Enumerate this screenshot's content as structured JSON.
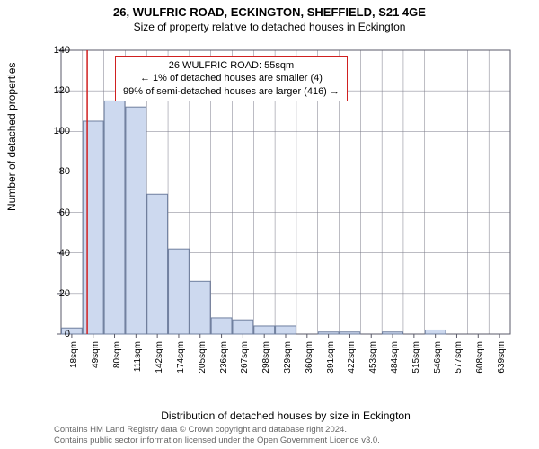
{
  "title": {
    "line1": "26, WULFRIC ROAD, ECKINGTON, SHEFFIELD, S21 4GE",
    "line2": "Size of property relative to detached houses in Eckington"
  },
  "axes": {
    "ylabel": "Number of detached properties",
    "xlabel": "Distribution of detached houses by size in Eckington",
    "ylim": [
      0,
      140
    ],
    "yticks": [
      0,
      20,
      40,
      60,
      80,
      100,
      120,
      140
    ],
    "xtick_labels": [
      "18sqm",
      "49sqm",
      "80sqm",
      "111sqm",
      "142sqm",
      "174sqm",
      "205sqm",
      "236sqm",
      "267sqm",
      "298sqm",
      "329sqm",
      "360sqm",
      "391sqm",
      "422sqm",
      "453sqm",
      "484sqm",
      "515sqm",
      "546sqm",
      "577sqm",
      "608sqm",
      "639sqm"
    ]
  },
  "chart": {
    "type": "bar-histogram",
    "values": [
      3,
      105,
      115,
      112,
      69,
      42,
      26,
      8,
      7,
      4,
      4,
      0,
      1,
      1,
      0,
      1,
      0,
      2,
      0,
      0,
      0
    ],
    "bar_fill": "#cdd9ef",
    "bar_stroke": "#6f7f9f",
    "bar_stroke_width": 1,
    "background": "#ffffff",
    "grid_color": "#7a7a88",
    "grid_stroke_width": 0.5,
    "axis_stroke": "#5a5a68",
    "marker_line": {
      "value": 55,
      "domain_min": 18,
      "domain_max": 654,
      "color": "#d02020",
      "width": 1.5
    }
  },
  "annotation": {
    "line1": "26 WULFRIC ROAD: 55sqm",
    "line2": "← 1% of detached houses are smaller (4)",
    "line3": "99% of semi-detached houses are larger (416) →",
    "border_color": "#d02020"
  },
  "credits": {
    "line1": "Contains HM Land Registry data © Crown copyright and database right 2024.",
    "line2": "Contains public sector information licensed under the Open Government Licence v3.0."
  },
  "fonts": {
    "title_size_pt": 13,
    "subtitle_size_pt": 12,
    "label_size_pt": 12,
    "tick_size_pt": 11,
    "annotation_size_pt": 11,
    "credits_size_pt": 9
  }
}
